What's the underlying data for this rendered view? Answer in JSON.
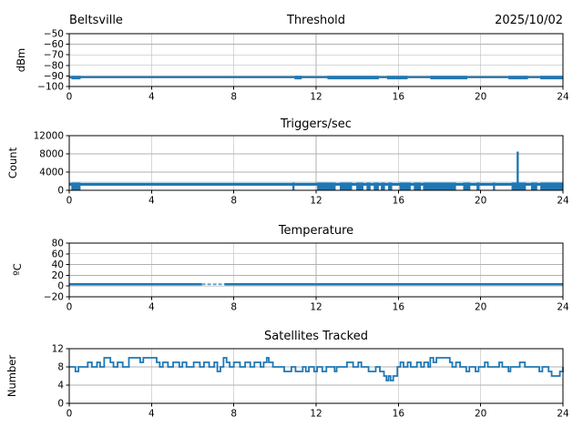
{
  "figure": {
    "background": "#ffffff"
  },
  "colors": {
    "line": "#1f77b4",
    "grid": "#b0b0b0",
    "frame": "#000000",
    "text": "#000000"
  },
  "chart_data": [
    {
      "id": "threshold",
      "type": "line",
      "title": "Threshold",
      "title_left": "Beltsville",
      "title_right": "2025/10/02",
      "ylabel": "dBm",
      "xlim": [
        0,
        24
      ],
      "ylim": [
        -100,
        -50
      ],
      "xtick_vals": [
        0,
        4,
        8,
        12,
        16,
        20,
        24
      ],
      "xtick_labels": [
        "0",
        "4",
        "8",
        "12",
        "16",
        "20",
        "24"
      ],
      "ytick_vals": [
        -100,
        -90,
        -80,
        -70,
        -60,
        -50
      ],
      "ytick_labels": [
        "−100",
        "−90",
        "−80",
        "−70",
        "−60",
        "−50"
      ],
      "grid": true,
      "series": {
        "kind": "flat_line",
        "name": "threshold_dbm",
        "y": -91.2,
        "thick_y": -91.6,
        "thick_segments": [
          [
            0.1,
            0.55
          ],
          [
            10.95,
            11.3
          ],
          [
            12.55,
            15.05
          ],
          [
            15.45,
            16.45
          ],
          [
            17.55,
            19.35
          ],
          [
            21.35,
            22.3
          ],
          [
            22.9,
            24.0
          ]
        ]
      }
    },
    {
      "id": "triggers",
      "type": "line",
      "title": "Triggers/sec",
      "ylabel": "Count",
      "xlim": [
        0,
        24
      ],
      "ylim": [
        0,
        12000
      ],
      "xtick_vals": [
        0,
        4,
        8,
        12,
        16,
        20,
        24
      ],
      "xtick_labels": [
        "0",
        "4",
        "8",
        "12",
        "16",
        "20",
        "24"
      ],
      "ytick_vals": [
        0,
        4000,
        8000,
        12000
      ],
      "ytick_labels": [
        "0",
        "4000",
        "8000",
        "12000"
      ],
      "grid": true,
      "series": {
        "kind": "noisy_band",
        "name": "triggers_per_sec",
        "band_low": 1000,
        "band_high": 1600,
        "fuzz_high": 1900,
        "dropout_top": 1700,
        "dropout_blocks": [
          [
            0.1,
            0.55
          ],
          [
            10.85,
            10.95
          ],
          [
            12.05,
            12.95
          ],
          [
            13.15,
            13.75
          ],
          [
            13.95,
            14.3
          ],
          [
            14.45,
            14.65
          ],
          [
            14.8,
            15.05
          ],
          [
            15.15,
            15.35
          ],
          [
            15.5,
            15.7
          ],
          [
            16.05,
            16.6
          ],
          [
            16.75,
            17.1
          ],
          [
            17.2,
            18.8
          ],
          [
            19.15,
            19.5
          ],
          [
            19.8,
            19.95
          ],
          [
            20.6,
            20.7
          ],
          [
            21.5,
            22.2
          ],
          [
            22.45,
            22.75
          ],
          [
            22.9,
            24.0
          ]
        ],
        "spike": {
          "x": 21.8,
          "y": 8500
        }
      }
    },
    {
      "id": "temperature",
      "type": "line",
      "title": "Temperature",
      "ylabel": "ºC",
      "xlim": [
        0,
        24
      ],
      "ylim": [
        -20,
        80
      ],
      "xtick_vals": [
        0,
        4,
        8,
        12,
        16,
        20,
        24
      ],
      "xtick_labels": [
        "0",
        "4",
        "8",
        "12",
        "16",
        "20",
        "24"
      ],
      "ytick_vals": [
        -20,
        0,
        20,
        40,
        60,
        80
      ],
      "ytick_labels": [
        "−20",
        "0",
        "20",
        "40",
        "60",
        "80"
      ],
      "grid": true,
      "series": {
        "kind": "flat_line_with_faint",
        "name": "temperature_c",
        "y": 3.2,
        "faint_segment": [
          6.45,
          7.55
        ]
      }
    },
    {
      "id": "satellites",
      "type": "line",
      "title": "Satellites Tracked",
      "ylabel": "Number",
      "xlim": [
        0,
        24
      ],
      "ylim": [
        0,
        12
      ],
      "xtick_vals": [
        0,
        4,
        8,
        12,
        16,
        20,
        24
      ],
      "xtick_labels": [
        "0",
        "4",
        "8",
        "12",
        "16",
        "20",
        "24"
      ],
      "ytick_vals": [
        0,
        4,
        8,
        12
      ],
      "ytick_labels": [
        "0",
        "4",
        "8",
        "12"
      ],
      "grid": true,
      "series": {
        "kind": "step",
        "name": "satellites_tracked",
        "x": [
          0,
          0.3,
          0.45,
          0.9,
          1.1,
          1.35,
          1.5,
          1.7,
          2.0,
          2.15,
          2.35,
          2.6,
          2.9,
          3.45,
          3.6,
          4.25,
          4.4,
          4.55,
          4.8,
          5.05,
          5.35,
          5.5,
          5.7,
          6.05,
          6.35,
          6.55,
          6.8,
          7.05,
          7.2,
          7.35,
          7.5,
          7.65,
          7.8,
          8.0,
          8.3,
          8.55,
          8.8,
          9.0,
          9.3,
          9.45,
          9.6,
          9.7,
          9.9,
          10.45,
          10.8,
          11.0,
          11.35,
          11.5,
          11.65,
          11.9,
          12.05,
          12.3,
          12.5,
          12.9,
          13.0,
          13.5,
          13.8,
          14.05,
          14.2,
          14.55,
          14.9,
          15.1,
          15.3,
          15.42,
          15.52,
          15.62,
          15.75,
          15.95,
          16.1,
          16.25,
          16.45,
          16.6,
          16.9,
          17.1,
          17.25,
          17.45,
          17.55,
          17.7,
          17.85,
          18.5,
          18.62,
          18.8,
          19.0,
          19.3,
          19.45,
          19.75,
          19.9,
          20.2,
          20.35,
          20.9,
          21.05,
          21.35,
          21.45,
          21.9,
          22.15,
          22.85,
          23.0,
          23.3,
          23.45,
          23.85,
          24.0
        ],
        "y": [
          8,
          7,
          8,
          9,
          8,
          9,
          8,
          10,
          9,
          8,
          9,
          8,
          10,
          9,
          10,
          9,
          8,
          9,
          8,
          9,
          8,
          9,
          8,
          9,
          8,
          9,
          8,
          9,
          7,
          8,
          10,
          9,
          8,
          9,
          8,
          9,
          8,
          9,
          8,
          9,
          10,
          9,
          8,
          7,
          8,
          7,
          8,
          7,
          8,
          7,
          8,
          7,
          8,
          7,
          8,
          9,
          8,
          9,
          8,
          7,
          8,
          7,
          6,
          5,
          6,
          5,
          6,
          8,
          9,
          8,
          9,
          8,
          9,
          8,
          9,
          8,
          10,
          9,
          10,
          9,
          8,
          9,
          8,
          7,
          8,
          7,
          8,
          9,
          8,
          9,
          8,
          7,
          8,
          9,
          8,
          7,
          8,
          7,
          6,
          7,
          8
        ]
      }
    }
  ]
}
